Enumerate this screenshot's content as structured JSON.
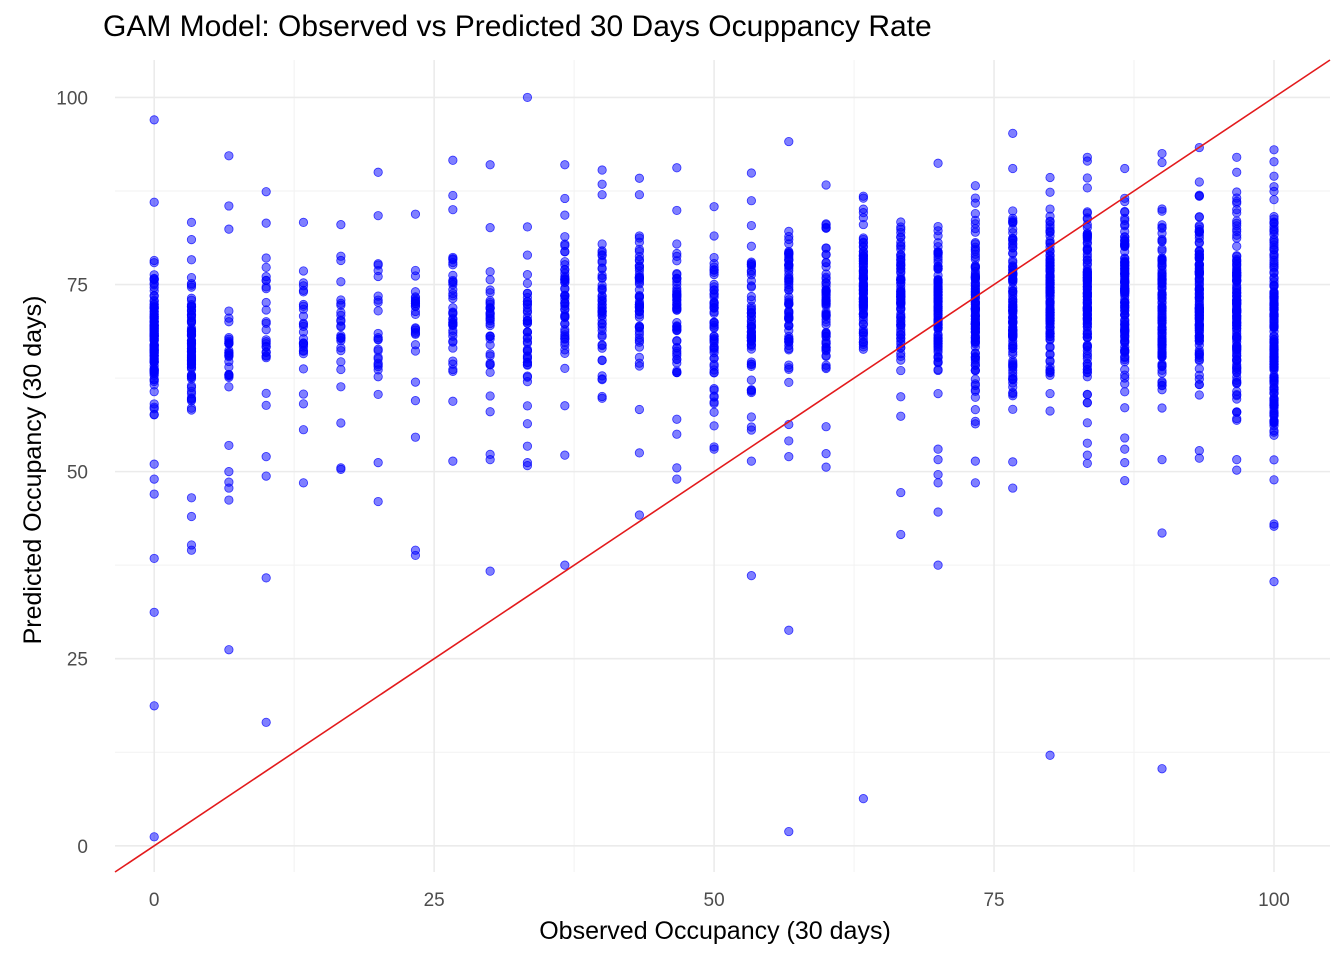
{
  "chart_data": {
    "type": "scatter",
    "title": "GAM Model: Observed vs Predicted 30 Days Ocuppancy Rate",
    "xlabel": "Observed Occupancy (30 days)",
    "ylabel": "Predicted Occupancy (30 days)",
    "xlim": [
      -3.5,
      105
    ],
    "ylim": [
      -3.5,
      105
    ],
    "x_ticks": [
      0,
      25,
      50,
      75,
      100
    ],
    "y_ticks": [
      0,
      25,
      50,
      75,
      100
    ],
    "grid": true,
    "point_color": "#0000ff",
    "point_opacity": 0.5,
    "reference_line": {
      "slope": 1,
      "intercept": 0,
      "color": "#e31a1c"
    },
    "columns": [
      {
        "x": 0,
        "band": [
          55,
          80
        ],
        "density": 110,
        "outliers": [
          1.2,
          18.7,
          31.2,
          38.4,
          47,
          49,
          51,
          86,
          97
        ]
      },
      {
        "x": 3.33,
        "band": [
          57,
          78
        ],
        "density": 80,
        "outliers": [
          39.5,
          40.2,
          44,
          46.5,
          81,
          83.3
        ]
      },
      {
        "x": 6.67,
        "band": [
          58,
          72
        ],
        "density": 25,
        "outliers": [
          26.2,
          46.2,
          47.8,
          48.6,
          50,
          53.5,
          82.4,
          85.5,
          92.2
        ]
      },
      {
        "x": 10,
        "band": [
          58,
          80
        ],
        "density": 24,
        "outliers": [
          16.5,
          35.8,
          49.4,
          52,
          83.2,
          87.4
        ]
      },
      {
        "x": 13.33,
        "band": [
          60,
          81
        ],
        "density": 25,
        "outliers": [
          48.5,
          55.6,
          83.3
        ]
      },
      {
        "x": 16.67,
        "band": [
          60,
          80
        ],
        "density": 22,
        "outliers": [
          50.3,
          50.5,
          56.5,
          83
        ]
      },
      {
        "x": 20,
        "band": [
          58,
          80
        ],
        "density": 22,
        "outliers": [
          46,
          51.2,
          84.2,
          90
        ]
      },
      {
        "x": 23.33,
        "band": [
          58,
          82
        ],
        "density": 24,
        "outliers": [
          38.8,
          39.5,
          54.6,
          84.4
        ]
      },
      {
        "x": 26.67,
        "band": [
          60,
          83
        ],
        "density": 36,
        "outliers": [
          51.4,
          59.4,
          85,
          86.9,
          91.6
        ]
      },
      {
        "x": 30,
        "band": [
          60,
          80
        ],
        "density": 32,
        "outliers": [
          36.7,
          51.6,
          52.3,
          58,
          82.6,
          91
        ]
      },
      {
        "x": 33.33,
        "band": [
          58,
          80
        ],
        "density": 40,
        "outliers": [
          50.8,
          51.2,
          53.4,
          56.4,
          82.7,
          100
        ]
      },
      {
        "x": 36.67,
        "band": [
          60,
          85
        ],
        "density": 48,
        "outliers": [
          37.5,
          52.2,
          58.8,
          86.5,
          91
        ]
      },
      {
        "x": 40,
        "band": [
          60,
          85
        ],
        "density": 48,
        "outliers": [
          59.8,
          87,
          88.4,
          90.3
        ]
      },
      {
        "x": 43.33,
        "band": [
          62,
          85
        ],
        "density": 52,
        "outliers": [
          44.2,
          52.5,
          58.3,
          87,
          89.2
        ]
      },
      {
        "x": 46.67,
        "band": [
          60,
          82
        ],
        "density": 52,
        "outliers": [
          49,
          50.5,
          55,
          57,
          84.9,
          90.6
        ]
      },
      {
        "x": 50,
        "band": [
          55,
          84
        ],
        "density": 56,
        "outliers": [
          53,
          53.3,
          85.4
        ]
      },
      {
        "x": 53.33,
        "band": [
          55,
          83
        ],
        "density": 60,
        "outliers": [
          36.1,
          51.4,
          86.2,
          89.9
        ]
      },
      {
        "x": 56.67,
        "band": [
          58,
          85
        ],
        "density": 66,
        "outliers": [
          1.9,
          28.8,
          52,
          54.1,
          56.3,
          94.1
        ]
      },
      {
        "x": 60,
        "band": [
          58,
          85
        ],
        "density": 64,
        "outliers": [
          50.6,
          52.4,
          56,
          88.3
        ]
      },
      {
        "x": 63.33,
        "band": [
          62,
          87
        ],
        "density": 86,
        "outliers": [
          6.3,
          86.8
        ]
      },
      {
        "x": 66.67,
        "band": [
          62,
          86
        ],
        "density": 80,
        "outliers": [
          41.6,
          47.2,
          57.4,
          60,
          63.5
        ]
      },
      {
        "x": 70,
        "band": [
          60,
          85
        ],
        "density": 96,
        "outliers": [
          37.5,
          44.6,
          48.5,
          49.6,
          51.6,
          53,
          91.2
        ]
      },
      {
        "x": 73.33,
        "band": [
          55,
          87
        ],
        "density": 110,
        "outliers": [
          48.5,
          51.4,
          88.2
        ]
      },
      {
        "x": 76.67,
        "band": [
          58,
          87
        ],
        "density": 120,
        "outliers": [
          47.8,
          51.3,
          90.5,
          95.2
        ]
      },
      {
        "x": 80,
        "band": [
          60,
          88
        ],
        "density": 120,
        "outliers": [
          12.1,
          58.1,
          89.3
        ]
      },
      {
        "x": 83.33,
        "band": [
          56,
          90
        ],
        "density": 120,
        "outliers": [
          51.1,
          52.2,
          53.8,
          91.5,
          92
        ]
      },
      {
        "x": 86.67,
        "band": [
          58,
          89
        ],
        "density": 120,
        "outliers": [
          48.8,
          51.2,
          53,
          54.5,
          90.5
        ]
      },
      {
        "x": 90,
        "band": [
          58,
          87
        ],
        "density": 110,
        "outliers": [
          10.3,
          41.8,
          51.6,
          58.5,
          91.3,
          92.5
        ]
      },
      {
        "x": 93.33,
        "band": [
          58,
          88
        ],
        "density": 120,
        "outliers": [
          51.8,
          52.8,
          88.7,
          93.3
        ]
      },
      {
        "x": 96.67,
        "band": [
          55,
          89
        ],
        "density": 130,
        "outliers": [
          50.2,
          51.6,
          90,
          92
        ]
      },
      {
        "x": 100,
        "band": [
          50,
          90
        ],
        "density": 180,
        "outliers": [
          35.3,
          42.7,
          43,
          48.9,
          91.4,
          93
        ]
      }
    ]
  }
}
